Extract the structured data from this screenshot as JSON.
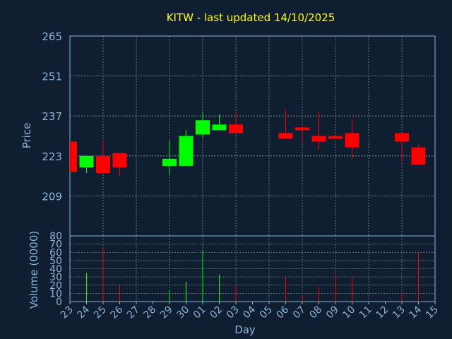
{
  "colors": {
    "background": "#0f1e30",
    "title": "#ffff00",
    "axis_text": "#8ab4d8",
    "frame": "#8ab4d8",
    "grid": "#d0d8e0",
    "up": "#00ff00",
    "down": "#ff0000",
    "day_label": "#3a3a3a"
  },
  "chart_data": {
    "type": "candlestick",
    "title": "KITW - last updated 14/10/2025",
    "price_panel": {
      "ylabel": "Price",
      "ylim": [
        195,
        265
      ],
      "yticks": [
        209,
        223,
        237,
        251,
        265
      ]
    },
    "volume_panel": {
      "ylabel": "Volume (0000)",
      "ylim": [
        0,
        80
      ],
      "yticks": [
        0,
        10,
        20,
        30,
        40,
        50,
        60,
        70,
        80
      ]
    },
    "xlabel": "Day",
    "x_ticks": [
      "23",
      "24",
      "25",
      "26",
      "27",
      "28",
      "29",
      "30",
      "01",
      "02",
      "03",
      "04",
      "05",
      "06",
      "07",
      "08",
      "09",
      "10",
      "11",
      "12",
      "13",
      "14",
      "15"
    ],
    "candles": [
      {
        "day": "23",
        "open": 228,
        "close": 217.5,
        "high": 228,
        "low": 217.5,
        "volume": 0
      },
      {
        "day": "24",
        "open": 219,
        "close": 223,
        "high": 223,
        "low": 217,
        "volume": 35
      },
      {
        "day": "25",
        "open": 223,
        "close": 217,
        "high": 228.5,
        "low": 217,
        "volume": 66
      },
      {
        "day": "26",
        "open": 224,
        "close": 219,
        "high": 224,
        "low": 216,
        "volume": 20
      },
      {
        "day": "29",
        "open": 219.5,
        "close": 222,
        "high": 228.5,
        "low": 216.5,
        "volume": 14
      },
      {
        "day": "30",
        "open": 219.5,
        "close": 230,
        "high": 232,
        "low": 219.5,
        "volume": 24
      },
      {
        "day": "01",
        "open": 230.5,
        "close": 235.5,
        "high": 238.5,
        "low": 229.5,
        "volume": 63
      },
      {
        "day": "02",
        "open": 232,
        "close": 234,
        "high": 237.5,
        "low": 232,
        "volume": 33
      },
      {
        "day": "03",
        "open": 234,
        "close": 231,
        "high": 238.5,
        "low": 231,
        "volume": 19
      },
      {
        "day": "06",
        "open": 231,
        "close": 229,
        "high": 239,
        "low": 229,
        "volume": 29
      },
      {
        "day": "07",
        "open": 233,
        "close": 232,
        "high": 233,
        "low": 228,
        "volume": 7
      },
      {
        "day": "08",
        "open": 230,
        "close": 228,
        "high": 238.5,
        "low": 225,
        "volume": 18
      },
      {
        "day": "09",
        "open": 230,
        "close": 229,
        "high": 230,
        "low": 229,
        "volume": 32
      },
      {
        "day": "10",
        "open": 231,
        "close": 226,
        "high": 236,
        "low": 222,
        "volume": 29
      },
      {
        "day": "13",
        "open": 231,
        "close": 228,
        "high": 231,
        "low": 221,
        "volume": 11
      },
      {
        "day": "14",
        "open": 226,
        "close": 220,
        "high": 227,
        "low": 220,
        "volume": 60
      }
    ]
  }
}
